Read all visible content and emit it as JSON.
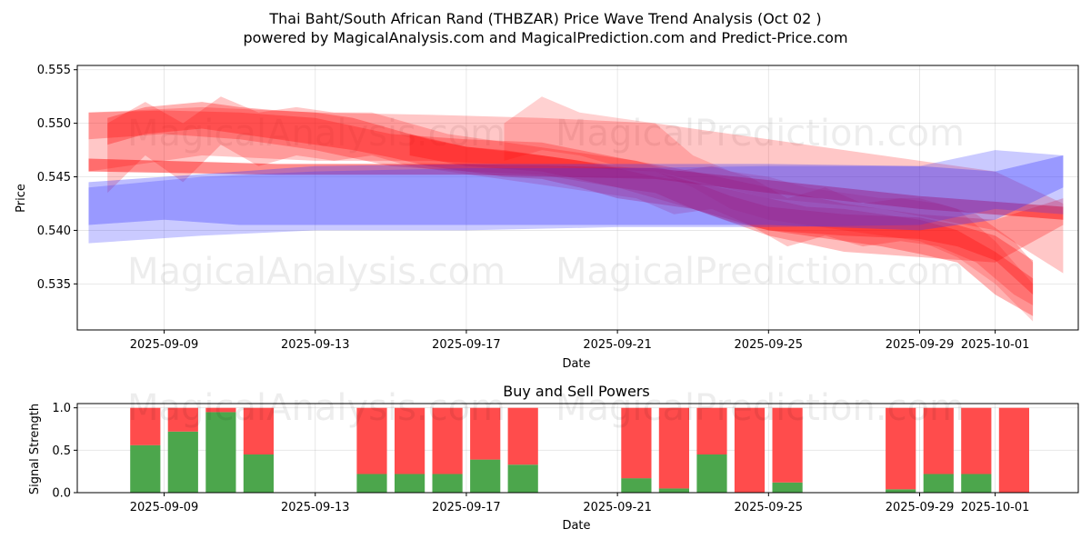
{
  "chart_data": [
    {
      "type": "area",
      "title_line1": "Thai Baht/South African Rand (THBZAR) Price Wave Trend Analysis (Oct 02 )",
      "title_line2": "powered by MagicalAnalysis.com and MagicalPrediction.com and Predict-Price.com",
      "xlabel": "Date",
      "ylabel": "Price",
      "ylim": [
        0.5307,
        0.5554
      ],
      "yticks": [
        0.535,
        0.54,
        0.545,
        0.55,
        0.555
      ],
      "ytick_labels": [
        "0.535",
        "0.540",
        "0.545",
        "0.550",
        "0.555"
      ],
      "xticks": [
        "2025-09-09",
        "2025-09-13",
        "2025-09-17",
        "2025-09-21",
        "2025-09-25",
        "2025-09-29",
        "2025-10-01"
      ],
      "xtick_days": [
        2,
        6,
        10,
        14,
        18,
        22,
        24
      ],
      "xlim_days": [
        -0.3,
        26.2
      ],
      "grid": true,
      "watermarks": [
        "MagicalAnalysis.com",
        "MagicalPrediction.com"
      ],
      "red_bands": [
        {
          "points": [
            [
              0,
              0.5485,
              0.551
            ],
            [
              2,
              0.549,
              0.5512
            ],
            [
              4,
              0.5485,
              0.551
            ],
            [
              6,
              0.5475,
              0.5505
            ],
            [
              8,
              0.546,
              0.549
            ],
            [
              10,
              0.5455,
              0.5485
            ],
            [
              12,
              0.5452,
              0.5482
            ],
            [
              14,
              0.544,
              0.5468
            ],
            [
              16,
              0.542,
              0.5455
            ],
            [
              18,
              0.5395,
              0.544
            ],
            [
              20,
              0.538,
              0.5425
            ],
            [
              22,
              0.5375,
              0.5415
            ],
            [
              24,
              0.537,
              0.541
            ],
            [
              25.8,
              0.5405,
              0.543
            ]
          ]
        },
        {
          "points": [
            [
              0,
              0.5455,
              0.551
            ],
            [
              3,
              0.547,
              0.5515
            ],
            [
              6,
              0.5465,
              0.551
            ],
            [
              9,
              0.5465,
              0.5508
            ],
            [
              12,
              0.546,
              0.5505
            ],
            [
              15,
              0.5455,
              0.55
            ],
            [
              18,
              0.543,
              0.5485
            ],
            [
              21,
              0.542,
              0.547
            ],
            [
              24,
              0.54,
              0.5455
            ],
            [
              25.8,
              0.536,
              0.5425
            ]
          ]
        },
        {
          "points": [
            [
              0.5,
              0.548,
              0.5505
            ],
            [
              1.5,
              0.549,
              0.5515
            ],
            [
              3,
              0.5495,
              0.552
            ],
            [
              4,
              0.549,
              0.5515
            ],
            [
              5,
              0.5485,
              0.5512
            ],
            [
              6,
              0.548,
              0.551
            ],
            [
              7,
              0.5475,
              0.5505
            ],
            [
              8,
              0.5468,
              0.5495
            ],
            [
              9,
              0.546,
              0.5485
            ],
            [
              10,
              0.5455,
              0.5478
            ],
            [
              11,
              0.545,
              0.5475
            ],
            [
              12,
              0.5448,
              0.547
            ],
            [
              13,
              0.544,
              0.5465
            ],
            [
              14,
              0.543,
              0.5458
            ],
            [
              15,
              0.5425,
              0.545
            ],
            [
              16,
              0.542,
              0.5445
            ],
            [
              17,
              0.541,
              0.5438
            ],
            [
              18,
              0.54,
              0.543
            ],
            [
              19,
              0.5395,
              0.5422
            ],
            [
              20,
              0.539,
              0.542
            ],
            [
              21,
              0.5385,
              0.5415
            ],
            [
              22,
              0.5378,
              0.541
            ],
            [
              23,
              0.537,
              0.54
            ],
            [
              24,
              0.534,
              0.538
            ],
            [
              25,
              0.532,
              0.5355
            ]
          ]
        },
        {
          "points": [
            [
              0,
              0.5455,
              0.5467
            ],
            [
              5,
              0.5452,
              0.5462
            ],
            [
              10,
              0.5452,
              0.5462
            ],
            [
              15,
              0.5448,
              0.5458
            ],
            [
              18,
              0.5435,
              0.5447
            ],
            [
              22,
              0.542,
              0.5432
            ],
            [
              25.8,
              0.541,
              0.5422
            ]
          ]
        },
        {
          "points": [
            [
              0.5,
              0.5435,
              0.55
            ],
            [
              1.5,
              0.547,
              0.552
            ],
            [
              2.5,
              0.5445,
              0.55
            ],
            [
              3.5,
              0.548,
              0.5525
            ],
            [
              4.5,
              0.546,
              0.551
            ],
            [
              5.5,
              0.547,
              0.5515
            ],
            [
              6.5,
              0.5465,
              0.551
            ],
            [
              7.5,
              0.547,
              0.551
            ],
            [
              8.5,
              0.546,
              0.55
            ],
            [
              9.5,
              0.5455,
              0.549
            ],
            [
              10.5,
              0.545,
              0.5485
            ],
            [
              11.5,
              0.5445,
              0.548
            ],
            [
              12.5,
              0.544,
              0.5475
            ],
            [
              13.5,
              0.5435,
              0.547
            ],
            [
              14.5,
              0.543,
              0.5465
            ],
            [
              15.5,
              0.5415,
              0.5455
            ],
            [
              16.5,
              0.542,
              0.546
            ],
            [
              17.5,
              0.5405,
              0.545
            ],
            [
              18.5,
              0.5385,
              0.543
            ],
            [
              19.5,
              0.5395,
              0.544
            ],
            [
              20.5,
              0.5385,
              0.5425
            ],
            [
              21.5,
              0.539,
              0.543
            ],
            [
              22.5,
              0.5385,
              0.5425
            ],
            [
              23.5,
              0.537,
              0.5415
            ],
            [
              24.5,
              0.534,
              0.539
            ],
            [
              25,
              0.533,
              0.537
            ]
          ]
        },
        {
          "points": [
            [
              8.5,
              0.547,
              0.549
            ],
            [
              10,
              0.546,
              0.5478
            ],
            [
              12,
              0.5455,
              0.547
            ],
            [
              14,
              0.544,
              0.546
            ],
            [
              15,
              0.5435,
              0.5455
            ],
            [
              16,
              0.542,
              0.5445
            ],
            [
              17,
              0.5408,
              0.5432
            ],
            [
              18,
              0.54,
              0.5422
            ],
            [
              20,
              0.5395,
              0.5415
            ],
            [
              22,
              0.5392,
              0.5412
            ],
            [
              23,
              0.5385,
              0.5405
            ],
            [
              24,
              0.5372,
              0.5395
            ],
            [
              25,
              0.534,
              0.5372
            ]
          ]
        },
        {
          "points": [
            [
              11,
              0.5465,
              0.55
            ],
            [
              12,
              0.5475,
              0.5525
            ],
            [
              13,
              0.547,
              0.551
            ],
            [
              14,
              0.546,
              0.5505
            ],
            [
              15,
              0.5455,
              0.55
            ],
            [
              16,
              0.544,
              0.547
            ],
            [
              17,
              0.542,
              0.5455
            ],
            [
              18,
              0.541,
              0.545
            ],
            [
              19,
              0.5405,
              0.544
            ],
            [
              20,
              0.54,
              0.5435
            ],
            [
              21,
              0.5395,
              0.543
            ],
            [
              22,
              0.539,
              0.543
            ],
            [
              23,
              0.5375,
              0.542
            ],
            [
              24,
              0.535,
              0.539
            ],
            [
              25,
              0.5315,
              0.535
            ]
          ]
        }
      ],
      "blue_bands": [
        {
          "points": [
            [
              0,
              0.5405,
              0.5445
            ],
            [
              2,
              0.541,
              0.545
            ],
            [
              4,
              0.5405,
              0.5455
            ],
            [
              6,
              0.5405,
              0.546
            ],
            [
              10,
              0.5405,
              0.5462
            ],
            [
              14,
              0.5405,
              0.5462
            ],
            [
              18,
              0.5405,
              0.5462
            ],
            [
              22,
              0.54,
              0.546
            ],
            [
              24,
              0.541,
              0.5455
            ],
            [
              25.8,
              0.544,
              0.547
            ]
          ]
        },
        {
          "points": [
            [
              0,
              0.5388,
              0.544
            ],
            [
              3,
              0.5395,
              0.545
            ],
            [
              6,
              0.54,
              0.5455
            ],
            [
              10,
              0.54,
              0.5458
            ],
            [
              14,
              0.5403,
              0.5458
            ],
            [
              18,
              0.5403,
              0.546
            ],
            [
              22,
              0.5405,
              0.546
            ],
            [
              24,
              0.542,
              0.5475
            ],
            [
              25.8,
              0.5415,
              0.547
            ]
          ]
        }
      ]
    },
    {
      "type": "bar",
      "title": "Buy and Sell Powers",
      "xlabel": "Date",
      "ylabel": "Signal Strength",
      "ylim": [
        0,
        1.05
      ],
      "yticks": [
        0.0,
        0.5,
        1.0
      ],
      "ytick_labels": [
        "0.0",
        "0.5",
        "1.0"
      ],
      "xticks": [
        "2025-09-09",
        "2025-09-13",
        "2025-09-17",
        "2025-09-21",
        "2025-09-25",
        "2025-09-29",
        "2025-10-01"
      ],
      "xtick_days": [
        2,
        6,
        10,
        14,
        18,
        22,
        24
      ],
      "xlim_days": [
        -0.3,
        26.2
      ],
      "bar_days": [
        1.5,
        2.5,
        3.5,
        4.5,
        7.5,
        8.5,
        9.5,
        10.5,
        11.5,
        14.5,
        15.5,
        16.5,
        17.5,
        18.5,
        21.5,
        22.5,
        23.5,
        24.5
      ],
      "series": [
        {
          "name": "Buy",
          "color": "#4ca64c",
          "values": [
            0.56,
            0.72,
            0.95,
            0.45,
            0.22,
            0.22,
            0.22,
            0.39,
            0.33,
            0.17,
            0.05,
            0.45,
            0.0,
            0.12,
            0.04,
            0.22,
            0.22,
            0.0
          ]
        },
        {
          "name": "Sell",
          "color": "#ff4c4c",
          "values": [
            0.44,
            0.28,
            0.05,
            0.55,
            0.78,
            0.78,
            0.78,
            0.61,
            0.67,
            0.83,
            0.95,
            0.55,
            1.0,
            0.88,
            0.96,
            0.78,
            0.78,
            1.0
          ]
        }
      ]
    }
  ]
}
